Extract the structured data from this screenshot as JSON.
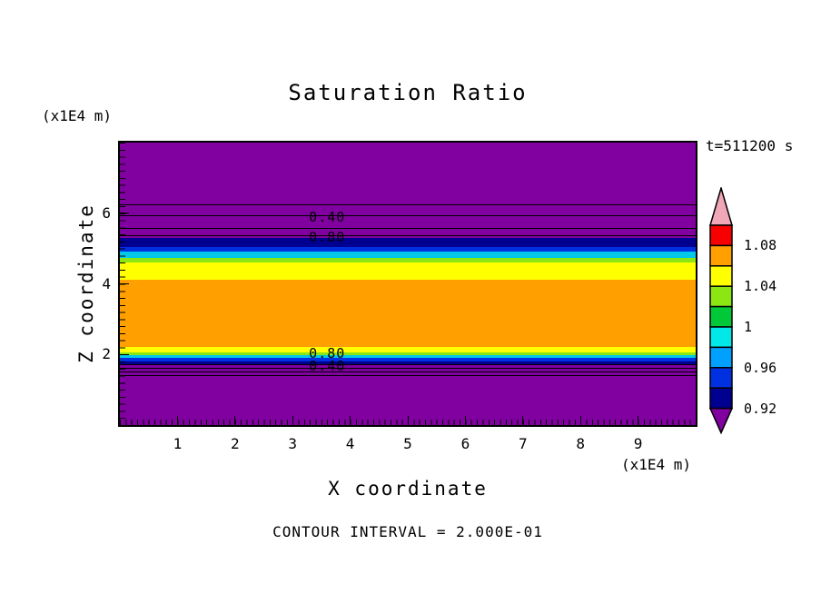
{
  "chart_data": {
    "type": "filled-contour",
    "title": "Saturation Ratio",
    "xlabel": "X coordinate",
    "ylabel": "Z coordinate",
    "x_units": "(x1E4 m)",
    "y_units": "(x1E4 m)",
    "time_label": "t=511200 s",
    "contour_interval_label": "CONTOUR INTERVAL = 2.000E-01",
    "xlim": [
      0,
      10
    ],
    "ylim": [
      0,
      8
    ],
    "x_ticks": [
      1,
      2,
      3,
      4,
      5,
      6,
      7,
      8,
      9
    ],
    "y_ticks": [
      2,
      4,
      6
    ],
    "background_color": "#8000A0",
    "bands": [
      {
        "name": "purple-upper",
        "from": 5.3,
        "to": 8.0,
        "color": "#8000A0"
      },
      {
        "name": "navy-upper",
        "from": 5.03,
        "to": 5.3,
        "color": "#000090"
      },
      {
        "name": "blue-upper",
        "from": 4.92,
        "to": 5.03,
        "color": "#0030E0"
      },
      {
        "name": "cyan-upper",
        "from": 4.74,
        "to": 4.92,
        "color": "#00C8E8"
      },
      {
        "name": "green-upper",
        "from": 4.6,
        "to": 4.74,
        "color": "#8CE614"
      },
      {
        "name": "yellow-upper",
        "from": 4.12,
        "to": 4.6,
        "color": "#FFFF00"
      },
      {
        "name": "orange-main",
        "from": 2.2,
        "to": 4.12,
        "color": "#FFA000"
      },
      {
        "name": "yellow-lower",
        "from": 2.06,
        "to": 2.2,
        "color": "#FFFF00"
      },
      {
        "name": "green-lower",
        "from": 1.98,
        "to": 2.06,
        "color": "#8CE614"
      },
      {
        "name": "cyan-lower",
        "from": 1.9,
        "to": 1.98,
        "color": "#00C8E8"
      },
      {
        "name": "blue-lower",
        "from": 1.81,
        "to": 1.9,
        "color": "#0030E0"
      },
      {
        "name": "navy-lower",
        "from": 1.73,
        "to": 1.81,
        "color": "#000090"
      },
      {
        "name": "purple-lower",
        "from": 0.0,
        "to": 1.73,
        "color": "#8000A0"
      }
    ],
    "contour_lines": [
      6.24,
      5.94,
      5.57,
      5.36,
      1.7,
      1.6,
      1.5,
      1.4
    ],
    "contour_labels": [
      {
        "text": "0.40",
        "x": 3.6,
        "z": 5.9
      },
      {
        "text": "0.80",
        "x": 3.6,
        "z": 5.32
      },
      {
        "text": "0.80",
        "x": 3.6,
        "z": 2.02
      },
      {
        "text": "0.40",
        "x": 3.6,
        "z": 1.66
      }
    ],
    "colorbar": {
      "arrow_top_color": "#F0A8B8",
      "arrow_bottom_color": "#8000A0",
      "segments": [
        "#F80000",
        "#FFA000",
        "#FFFF00",
        "#8CE614",
        "#00C838",
        "#00E8E8",
        "#00A0FF",
        "#0030E0",
        "#000090"
      ],
      "labels": [
        "1.08",
        "1.04",
        "1",
        "0.96",
        "0.92"
      ]
    }
  }
}
